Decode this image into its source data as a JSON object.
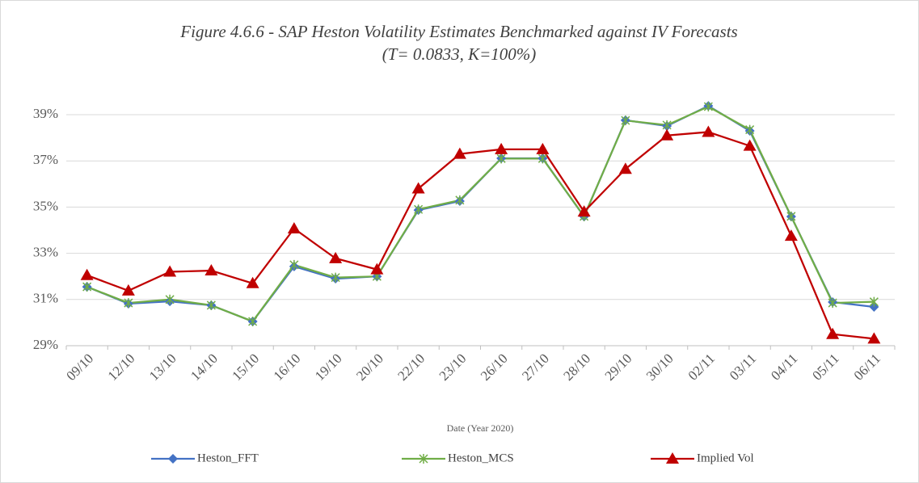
{
  "chart_data": {
    "type": "line",
    "title": "Figure 4.6.6 - SAP Heston Volatility Estimates Benchmarked against IV Forecasts",
    "subtitle": "(T= 0.0833, K=100%)",
    "x_label": "Date (Year 2020)",
    "categories": [
      "09/10",
      "12/10",
      "13/10",
      "14/10",
      "15/10",
      "16/10",
      "19/10",
      "20/10",
      "22/10",
      "23/10",
      "26/10",
      "27/10",
      "28/10",
      "29/10",
      "30/10",
      "02/11",
      "03/11",
      "04/11",
      "05/11",
      "06/11"
    ],
    "series": [
      {
        "name": "Heston_FFT",
        "color": "#4472c4",
        "marker": "diamond",
        "values": [
          31.55,
          30.82,
          30.92,
          30.75,
          30.05,
          32.43,
          31.9,
          32.0,
          34.87,
          35.26,
          37.11,
          37.11,
          34.59,
          38.76,
          38.51,
          39.38,
          38.3,
          34.59,
          30.89,
          30.68
        ]
      },
      {
        "name": "Heston_MCS",
        "color": "#70ad47",
        "marker": "asterisk",
        "values": [
          31.55,
          30.85,
          31.0,
          30.75,
          30.05,
          32.5,
          31.95,
          32.0,
          34.9,
          35.3,
          37.1,
          37.1,
          34.6,
          38.75,
          38.55,
          39.35,
          38.35,
          34.6,
          30.85,
          30.9
        ]
      },
      {
        "name": "Implied Vol",
        "color": "#c00000",
        "marker": "triangle",
        "values": [
          32.05,
          31.38,
          32.2,
          32.25,
          31.7,
          34.07,
          32.78,
          32.3,
          35.8,
          37.3,
          37.5,
          37.5,
          34.8,
          36.65,
          38.1,
          38.25,
          37.65,
          33.75,
          29.5,
          29.3
        ]
      }
    ],
    "ylim": [
      29,
      39
    ],
    "yticks": [
      {
        "value": 29,
        "label": "29%"
      },
      {
        "value": 31,
        "label": "31%"
      },
      {
        "value": 33,
        "label": "33%"
      },
      {
        "value": 35,
        "label": "35%"
      },
      {
        "value": 37,
        "label": "37%"
      },
      {
        "value": 39,
        "label": "39%"
      }
    ],
    "grid": true,
    "legend": "bottom"
  }
}
